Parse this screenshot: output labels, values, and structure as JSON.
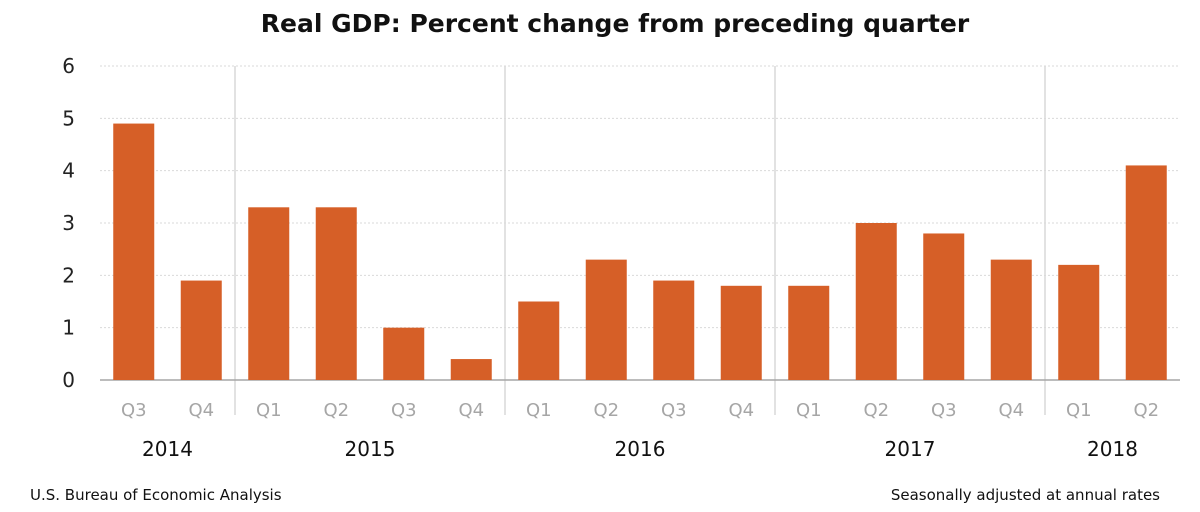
{
  "chart_data": {
    "type": "bar",
    "title": "Real GDP:  Percent change from preceding quarter",
    "categories": [
      "Q3",
      "Q4",
      "Q1",
      "Q2",
      "Q3",
      "Q4",
      "Q1",
      "Q2",
      "Q3",
      "Q4",
      "Q1",
      "Q2",
      "Q3",
      "Q4",
      "Q1",
      "Q2"
    ],
    "years": [
      {
        "label": "2014",
        "quarters": 2
      },
      {
        "label": "2015",
        "quarters": 4
      },
      {
        "label": "2016",
        "quarters": 4
      },
      {
        "label": "2017",
        "quarters": 4
      },
      {
        "label": "2018",
        "quarters": 2
      }
    ],
    "values": [
      4.9,
      1.9,
      3.3,
      3.3,
      1.0,
      0.4,
      1.5,
      2.3,
      1.9,
      1.8,
      1.8,
      3.0,
      2.8,
      2.3,
      2.2,
      4.1
    ],
    "ylim": [
      0,
      6
    ],
    "yticks": [
      0,
      1,
      2,
      3,
      4,
      5,
      6
    ],
    "grid": true,
    "bar_color": "#D65F27",
    "xlabel": "",
    "ylabel": ""
  },
  "footer": {
    "source": "U.S. Bureau of Economic Analysis",
    "note": "Seasonally adjusted at annual rates"
  }
}
